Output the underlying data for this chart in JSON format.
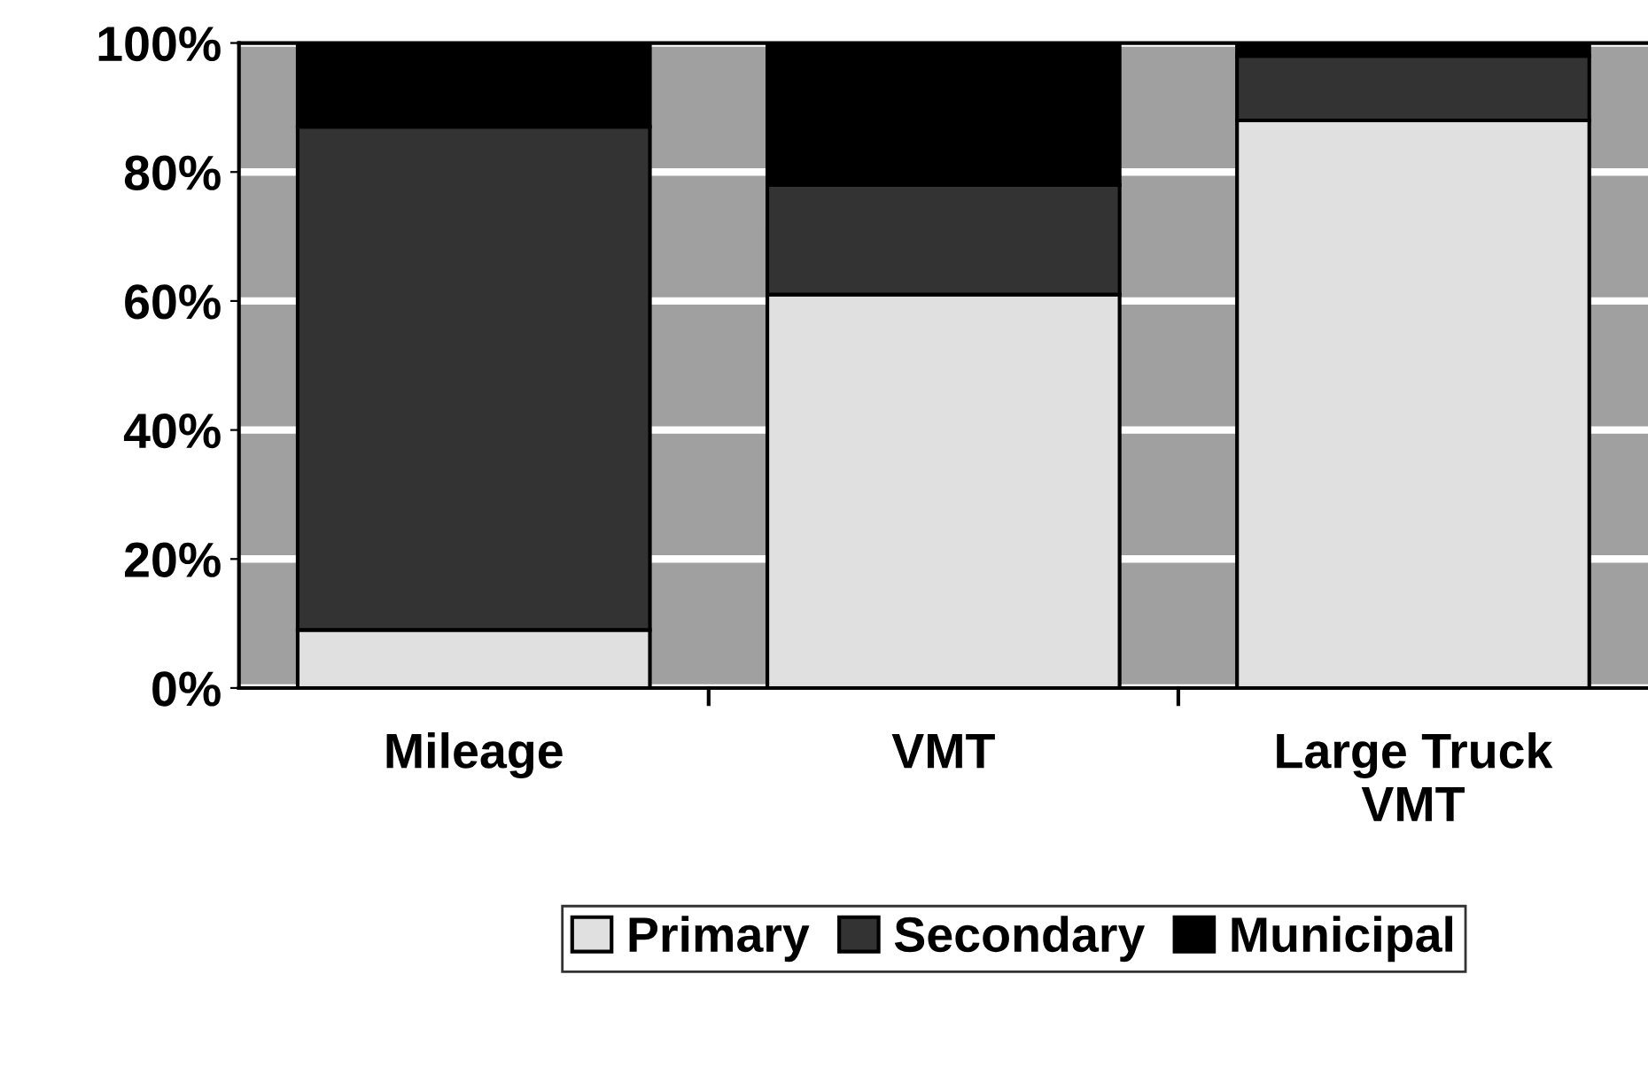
{
  "chart_data": {
    "type": "bar",
    "stacked": true,
    "categories": [
      "Mileage",
      "VMT",
      "Large Truck\nVMT"
    ],
    "series": [
      {
        "name": "Primary",
        "color": "#e0e0e0",
        "values": [
          9,
          61,
          88
        ]
      },
      {
        "name": "Secondary",
        "color": "#333333",
        "values": [
          78,
          17,
          10
        ]
      },
      {
        "name": "Municipal",
        "color": "#000000",
        "values": [
          13,
          22,
          2
        ]
      }
    ],
    "ylim": [
      0,
      100
    ],
    "yticks": [
      {
        "value": 0,
        "label": "0%"
      },
      {
        "value": 20,
        "label": "20%"
      },
      {
        "value": 40,
        "label": "40%"
      },
      {
        "value": 60,
        "label": "60%"
      },
      {
        "value": 80,
        "label": "80%"
      },
      {
        "value": 100,
        "label": "100%"
      }
    ],
    "grid": "y",
    "legend": "bottom"
  }
}
